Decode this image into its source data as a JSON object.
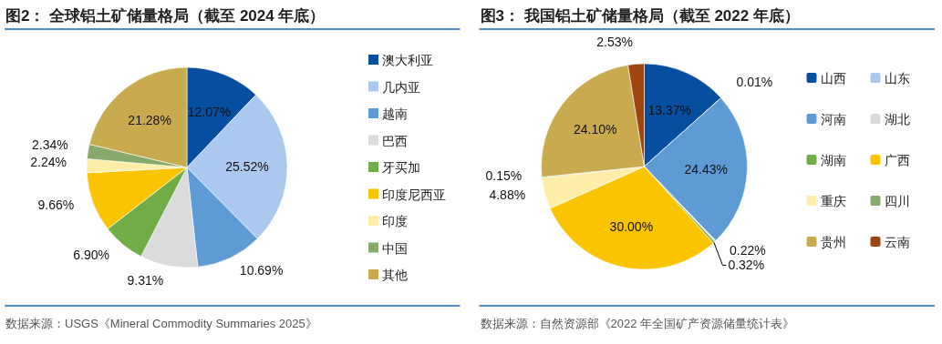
{
  "chart_data": [
    {
      "type": "pie",
      "title": "图2： 全球铝土矿储量格局（截至 2024 年底）",
      "categories": [
        "澳大利亚",
        "几内亚",
        "越南",
        "巴西",
        "牙买加",
        "印度尼西亚",
        "印度",
        "中国",
        "其他"
      ],
      "values": [
        12.07,
        25.52,
        10.69,
        9.31,
        6.9,
        9.66,
        2.24,
        2.34,
        21.28
      ],
      "value_labels": [
        "12.07%",
        "25.52%",
        "10.69%",
        "9.31%",
        "6.90%",
        "9.66%",
        "2.24%",
        "2.34%",
        "21.28%"
      ],
      "colors": [
        "#054ea0",
        "#abc9ef",
        "#5e9bd5",
        "#d9dbdd",
        "#70ad47",
        "#fac400",
        "#ffeeaa",
        "#87a96b",
        "#c9aa4f"
      ],
      "legend": "right",
      "annotations": [
        "数据来源：USGS《Mineral Commodity Summaries 2025》"
      ]
    },
    {
      "type": "pie",
      "title": "图3： 我国铝土矿储量格局（截至 2022 年底）",
      "categories": [
        "山西",
        "山东",
        "河南",
        "湖北",
        "湖南",
        "广西",
        "重庆",
        "四川",
        "贵州",
        "云南"
      ],
      "values": [
        13.37,
        0.01,
        24.43,
        0.22,
        0.32,
        30.0,
        4.88,
        0.15,
        24.1,
        2.53
      ],
      "value_labels": [
        "13.37%",
        "0.01%",
        "24.43%",
        "0.22%",
        "0.32%",
        "30.00%",
        "4.88%",
        "0.15%",
        "24.10%",
        "2.53%"
      ],
      "colors": [
        "#054ea0",
        "#abc9ef",
        "#5e9bd5",
        "#d9dbdd",
        "#70ad47",
        "#fac400",
        "#ffeeaa",
        "#87a96b",
        "#c9aa4f",
        "#9e4510"
      ],
      "legend": "right",
      "annotations": [
        "数据来源：自然资源部《2022 年全国矿产资源储量统计表》"
      ]
    }
  ]
}
